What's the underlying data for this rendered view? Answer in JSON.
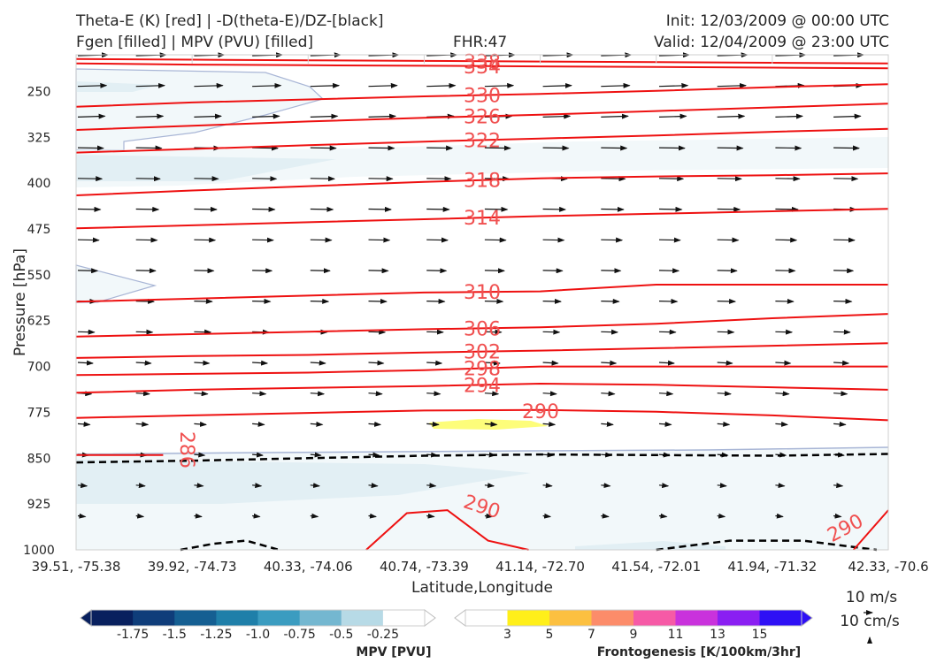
{
  "header": {
    "left_line1": "Theta-E (K) [red] | -D(theta-E)/DZ-[black]",
    "left_line2": "Fgen [filled] | MPV (PVU) [filled]",
    "fhr": "FHR:47",
    "init": "Init: 12/03/2009 @ 00:00 UTC",
    "valid": "Valid: 12/04/2009 @ 23:00 UTC"
  },
  "chart_data": {
    "type": "contour",
    "xlabel": "Latitude,Longitude",
    "ylabel": "Pressure [hPa]",
    "x_ticks": [
      "39.51, -75.38",
      "39.92, -74.73",
      "40.33, -74.06",
      "40.74, -73.39",
      "41.14, -72.70",
      "41.54, -72.01",
      "41.94, -71.32",
      "42.33, -70.6"
    ],
    "y_ticks": [
      250,
      325,
      400,
      475,
      550,
      625,
      700,
      775,
      850,
      925,
      1000
    ],
    "ylim": [
      1000,
      190
    ],
    "x_range": [
      0,
      7
    ],
    "theta_e_contours": [
      {
        "label": "338",
        "p": [
          197,
          198,
          199,
          200,
          201,
          202,
          203,
          204
        ]
      },
      {
        "label": "334",
        "p": [
          204,
          206,
          207,
          208,
          209,
          210,
          211,
          212
        ]
      },
      {
        "label": "330",
        "p": [
          275,
          268,
          263,
          258,
          254,
          249,
          243,
          238
        ]
      },
      {
        "label": "326",
        "p": [
          313,
          306,
          299,
          293,
          288,
          282,
          276,
          270
        ]
      },
      {
        "label": "322",
        "p": [
          350,
          344,
          338,
          332,
          327,
          322,
          316,
          311
        ]
      },
      {
        "label": "318",
        "p": [
          420,
          412,
          405,
          398,
          392,
          389,
          387,
          384
        ]
      },
      {
        "label": "314",
        "p": [
          474,
          469,
          464,
          459,
          454,
          450,
          446,
          442
        ]
      },
      {
        "label": "310",
        "p": [
          594,
          589,
          584,
          579,
          577,
          566,
          566,
          566
        ]
      },
      {
        "label": "306",
        "p": [
          651,
          647,
          643,
          639,
          636,
          630,
          621,
          614
        ]
      },
      {
        "label": "302",
        "p": [
          686,
          683,
          681,
          677,
          674,
          670,
          666,
          662
        ]
      },
      {
        "label": "298",
        "p": [
          714,
          712,
          710,
          706,
          700,
          700,
          700,
          700
        ]
      },
      {
        "label": "294",
        "p": [
          743,
          738,
          735,
          732,
          728,
          730,
          734,
          738
        ]
      },
      {
        "label": "290",
        "p": [
          784,
          780,
          776,
          772,
          771,
          774,
          780,
          788
        ]
      },
      {
        "label": "286",
        "p": [
          845,
          845,
          845
        ]
      },
      {
        "label": "290",
        "p": [
          1000,
          940,
          935,
          985,
          1000
        ]
      },
      {
        "label": "290",
        "p": [
          1000,
          935
        ]
      }
    ],
    "stability_dashed": [
      {
        "p": [
          857,
          854,
          850,
          846,
          844,
          845,
          846,
          843
        ]
      },
      {
        "p": [
          1000,
          990,
          985,
          1000
        ]
      },
      {
        "p": [
          1000,
          985,
          985,
          1000
        ]
      }
    ],
    "wind_vectors": {
      "scale_speed": "10 m/s",
      "scale_vertical": "10 cm/s"
    },
    "colorbars": [
      {
        "label": "MPV [PVU]",
        "ticks": [
          "-1.75",
          "-1.5",
          "-1.25",
          "-1.0",
          "-0.75",
          "-0.5",
          "-0.25"
        ],
        "colors": [
          "#08205e",
          "#0f3d7a",
          "#155f92",
          "#1f7fa9",
          "#3b9cc0",
          "#74b7d0",
          "#b7dae6",
          "#ffffff"
        ]
      },
      {
        "label": "Frontogenesis [K/100km/3hr]",
        "ticks": [
          "3",
          "5",
          "7",
          "9",
          "11",
          "13",
          "15"
        ],
        "colors": [
          "#ffffff",
          "#ffef1a",
          "#fcc040",
          "#fc8c6a",
          "#f65aa6",
          "#c932dc",
          "#8a1ff2",
          "#2e10f5"
        ]
      }
    ]
  }
}
